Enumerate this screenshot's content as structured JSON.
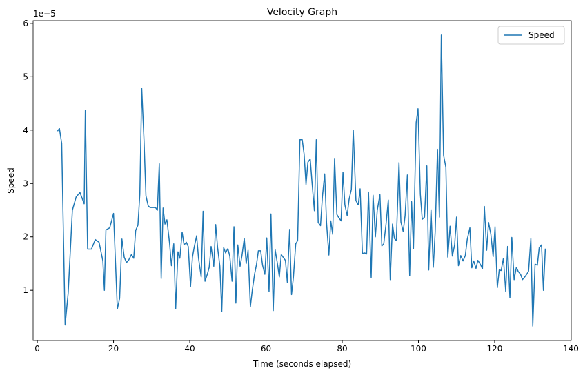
{
  "chart_data": {
    "type": "line",
    "title": "Velocity Graph",
    "xlabel": "Time (seconds elapsed)",
    "ylabel": "Speed",
    "y_offset_label": "1e−5",
    "x": [
      5.3,
      5.8,
      6.4,
      7.3,
      8.1,
      9.2,
      10.2,
      11.2,
      12.3,
      12.6,
      13.2,
      14.2,
      15.2,
      16.2,
      17.2,
      17.6,
      18.0,
      19.0,
      20.0,
      21.0,
      21.6,
      22.2,
      22.8,
      23.4,
      24.0,
      24.7,
      25.3,
      25.8,
      26.4,
      26.9,
      27.4,
      28.0,
      28.5,
      29.1,
      29.6,
      30.2,
      31.0,
      31.5,
      32.0,
      32.5,
      33.0,
      33.5,
      34.0,
      34.7,
      35.2,
      35.8,
      36.3,
      36.9,
      37.4,
      38.0,
      38.5,
      39.1,
      39.6,
      40.2,
      40.7,
      41.2,
      41.8,
      42.3,
      43.0,
      43.5,
      44.0,
      44.6,
      45.1,
      45.6,
      46.3,
      46.8,
      47.3,
      47.9,
      48.4,
      48.9,
      49.4,
      50.0,
      50.5,
      51.1,
      51.6,
      52.1,
      52.6,
      53.2,
      53.7,
      54.3,
      54.8,
      55.3,
      55.9,
      56.4,
      57.0,
      57.5,
      58.0,
      58.6,
      59.1,
      59.7,
      60.2,
      60.8,
      61.3,
      61.9,
      62.4,
      63.0,
      63.5,
      64.0,
      64.5,
      65.1,
      65.6,
      66.2,
      66.7,
      67.2,
      67.8,
      68.3,
      68.9,
      69.5,
      70.0,
      70.5,
      71.0,
      71.6,
      72.1,
      72.7,
      73.2,
      73.7,
      74.3,
      74.8,
      75.4,
      75.9,
      76.5,
      77.0,
      77.5,
      78.0,
      78.6,
      79.1,
      79.7,
      80.2,
      80.7,
      81.3,
      81.8,
      82.4,
      82.9,
      83.6,
      84.2,
      84.7,
      85.3,
      85.9,
      86.4,
      86.9,
      87.6,
      88.1,
      88.7,
      89.2,
      89.9,
      90.4,
      90.9,
      91.5,
      92.1,
      92.6,
      93.2,
      93.7,
      94.2,
      94.9,
      95.4,
      96.0,
      96.5,
      97.1,
      97.7,
      98.2,
      98.7,
      99.4,
      99.9,
      100.5,
      101.0,
      101.6,
      102.2,
      102.7,
      103.3,
      103.9,
      104.4,
      105.0,
      105.5,
      106.0,
      106.6,
      107.2,
      107.7,
      108.3,
      108.9,
      109.5,
      110.0,
      110.5,
      111.1,
      111.7,
      112.3,
      112.8,
      113.5,
      114.0,
      114.5,
      115.1,
      115.6,
      116.3,
      116.8,
      117.3,
      117.9,
      118.4,
      119.0,
      119.6,
      120.1,
      120.7,
      121.2,
      121.7,
      122.3,
      122.9,
      123.4,
      124.0,
      124.5,
      125.1,
      125.7,
      126.2,
      126.8,
      127.3,
      127.9,
      128.4,
      128.9,
      129.5,
      130.0,
      130.6,
      131.2,
      131.7,
      132.3,
      132.8,
      133.3
    ],
    "series": [
      {
        "name": "Speed",
        "color": "#1f77b4",
        "values": [
          3.98,
          4.03,
          3.75,
          0.35,
          0.95,
          2.5,
          2.75,
          2.83,
          2.62,
          4.37,
          1.77,
          1.77,
          1.95,
          1.9,
          1.55,
          1.0,
          2.13,
          2.17,
          2.44,
          0.65,
          0.85,
          1.96,
          1.62,
          1.52,
          1.57,
          1.67,
          1.6,
          2.12,
          2.22,
          2.8,
          4.78,
          3.8,
          2.77,
          2.58,
          2.55,
          2.55,
          2.55,
          2.5,
          3.37,
          1.22,
          2.54,
          2.24,
          2.32,
          1.88,
          1.46,
          1.87,
          0.65,
          1.72,
          1.6,
          2.09,
          1.85,
          1.9,
          1.82,
          1.07,
          1.62,
          1.82,
          2.02,
          1.6,
          1.25,
          2.48,
          1.17,
          1.3,
          1.43,
          1.82,
          1.45,
          2.23,
          1.8,
          1.45,
          0.6,
          1.8,
          1.7,
          1.78,
          1.64,
          1.17,
          2.19,
          0.76,
          1.85,
          1.45,
          1.65,
          1.97,
          1.5,
          1.75,
          0.69,
          1.0,
          1.3,
          1.48,
          1.74,
          1.74,
          1.47,
          1.3,
          1.98,
          0.98,
          2.43,
          0.62,
          1.76,
          1.5,
          1.25,
          1.67,
          1.62,
          1.56,
          1.15,
          2.14,
          0.92,
          1.25,
          1.87,
          1.93,
          3.82,
          3.82,
          3.55,
          2.98,
          3.4,
          3.46,
          3.0,
          2.49,
          3.82,
          2.27,
          2.21,
          2.75,
          3.18,
          2.25,
          1.66,
          2.3,
          2.05,
          3.47,
          2.42,
          2.36,
          2.3,
          3.21,
          2.6,
          2.4,
          2.7,
          2.89,
          4.0,
          2.68,
          2.6,
          2.9,
          1.69,
          1.7,
          1.68,
          2.84,
          1.24,
          2.78,
          2.0,
          2.5,
          2.79,
          1.83,
          1.87,
          2.24,
          2.69,
          1.2,
          2.24,
          1.97,
          1.93,
          3.39,
          2.28,
          2.1,
          2.4,
          3.16,
          1.27,
          2.66,
          1.78,
          4.14,
          4.4,
          2.8,
          2.33,
          2.37,
          3.33,
          1.38,
          2.51,
          1.43,
          2.1,
          3.64,
          2.37,
          5.78,
          3.53,
          3.3,
          1.62,
          2.2,
          1.64,
          1.85,
          2.37,
          1.46,
          1.65,
          1.55,
          1.65,
          1.95,
          2.17,
          1.42,
          1.55,
          1.41,
          1.56,
          1.48,
          1.4,
          2.57,
          1.75,
          2.27,
          2.05,
          1.63,
          2.19,
          1.05,
          1.38,
          1.37,
          1.6,
          0.98,
          1.82,
          0.86,
          1.99,
          1.2,
          1.43,
          1.35,
          1.3,
          1.2,
          1.25,
          1.3,
          1.36,
          1.97,
          0.33,
          1.49,
          1.47,
          1.8,
          1.85,
          1.0,
          1.78
        ]
      }
    ],
    "xlim": [
      -1.1,
      140.1
    ],
    "xticks": [
      0,
      20,
      40,
      60,
      80,
      100,
      120,
      140
    ],
    "ylim": [
      0.06,
      6.05
    ],
    "yticks": [
      1,
      2,
      3,
      4,
      5,
      6
    ],
    "grid": false,
    "legend": "upper right"
  }
}
